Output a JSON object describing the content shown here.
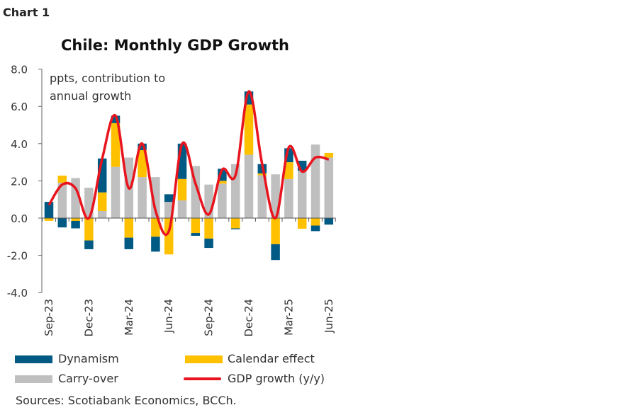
{
  "header": {
    "chart_label": "Chart 1"
  },
  "chart_data": {
    "type": "bar",
    "stacked": true,
    "title": "Chile: Monthly GDP Growth",
    "annotation": [
      "ppts, contribution to",
      "annual growth"
    ],
    "ylim": [
      -4,
      8
    ],
    "yticks": [
      "-4.0",
      "-2.0",
      "0.0",
      "2.0",
      "4.0",
      "6.0",
      "8.0"
    ],
    "categories": [
      "Sep-23",
      "Oct-23",
      "Nov-23",
      "Dec-23",
      "Jan-24",
      "Feb-24",
      "Mar-24",
      "Apr-24",
      "May-24",
      "Jun-24",
      "Jul-24",
      "Aug-24",
      "Sep-24",
      "Oct-24",
      "Nov-24",
      "Dec-24",
      "Jan-25",
      "Feb-25",
      "Mar-25",
      "Apr-25",
      "May-25",
      "Jun-25"
    ],
    "xtick_labels": [
      "Sep-23",
      "Dec-23",
      "Mar-24",
      "Jun-24",
      "Sep-24",
      "Dec-24",
      "Mar-25",
      "Jun-25"
    ],
    "series": [
      {
        "name": "Carry-over",
        "color": "#BFBFBF",
        "values": [
          0.0,
          1.9,
          2.15,
          1.63,
          0.38,
          2.75,
          3.25,
          2.2,
          2.2,
          0.87,
          0.95,
          2.8,
          1.8,
          1.85,
          2.9,
          3.4,
          2.3,
          2.35,
          2.1,
          2.55,
          3.95,
          3.25
        ]
      },
      {
        "name": "Calendar effect",
        "color": "#FFC000",
        "values": [
          -0.15,
          0.38,
          -0.15,
          -1.2,
          1.0,
          2.35,
          -1.05,
          1.45,
          -1.0,
          -1.95,
          1.15,
          -0.8,
          -1.1,
          0.15,
          -0.55,
          2.7,
          0.1,
          -1.4,
          0.9,
          -0.57,
          -0.4,
          0.25
        ]
      },
      {
        "name": "Dynamism",
        "color": "#005A84",
        "values": [
          0.87,
          -0.5,
          -0.4,
          -0.47,
          1.82,
          0.4,
          -0.62,
          0.35,
          -0.8,
          0.41,
          1.9,
          -0.15,
          -0.5,
          0.65,
          -0.05,
          0.7,
          0.5,
          -0.85,
          0.75,
          0.53,
          -0.3,
          -0.35
        ]
      },
      {
        "name": "GDP growth (y/y)",
        "type": "line",
        "color": "#E8141E",
        "values": [
          0.7,
          1.8,
          1.6,
          0.0,
          3.2,
          5.5,
          1.6,
          4.0,
          0.4,
          -0.7,
          4.0,
          1.85,
          0.2,
          2.6,
          2.3,
          6.8,
          2.9,
          0.0,
          3.8,
          2.5,
          3.25,
          3.15
        ]
      }
    ],
    "legend": [
      "Dynamism",
      "Calendar effect",
      "Carry-over",
      "GDP growth (y/y)"
    ],
    "legend_position": "bottom",
    "grid": false
  },
  "footer": {
    "sources": "Sources: Scotiabank Economics, BCCh."
  }
}
